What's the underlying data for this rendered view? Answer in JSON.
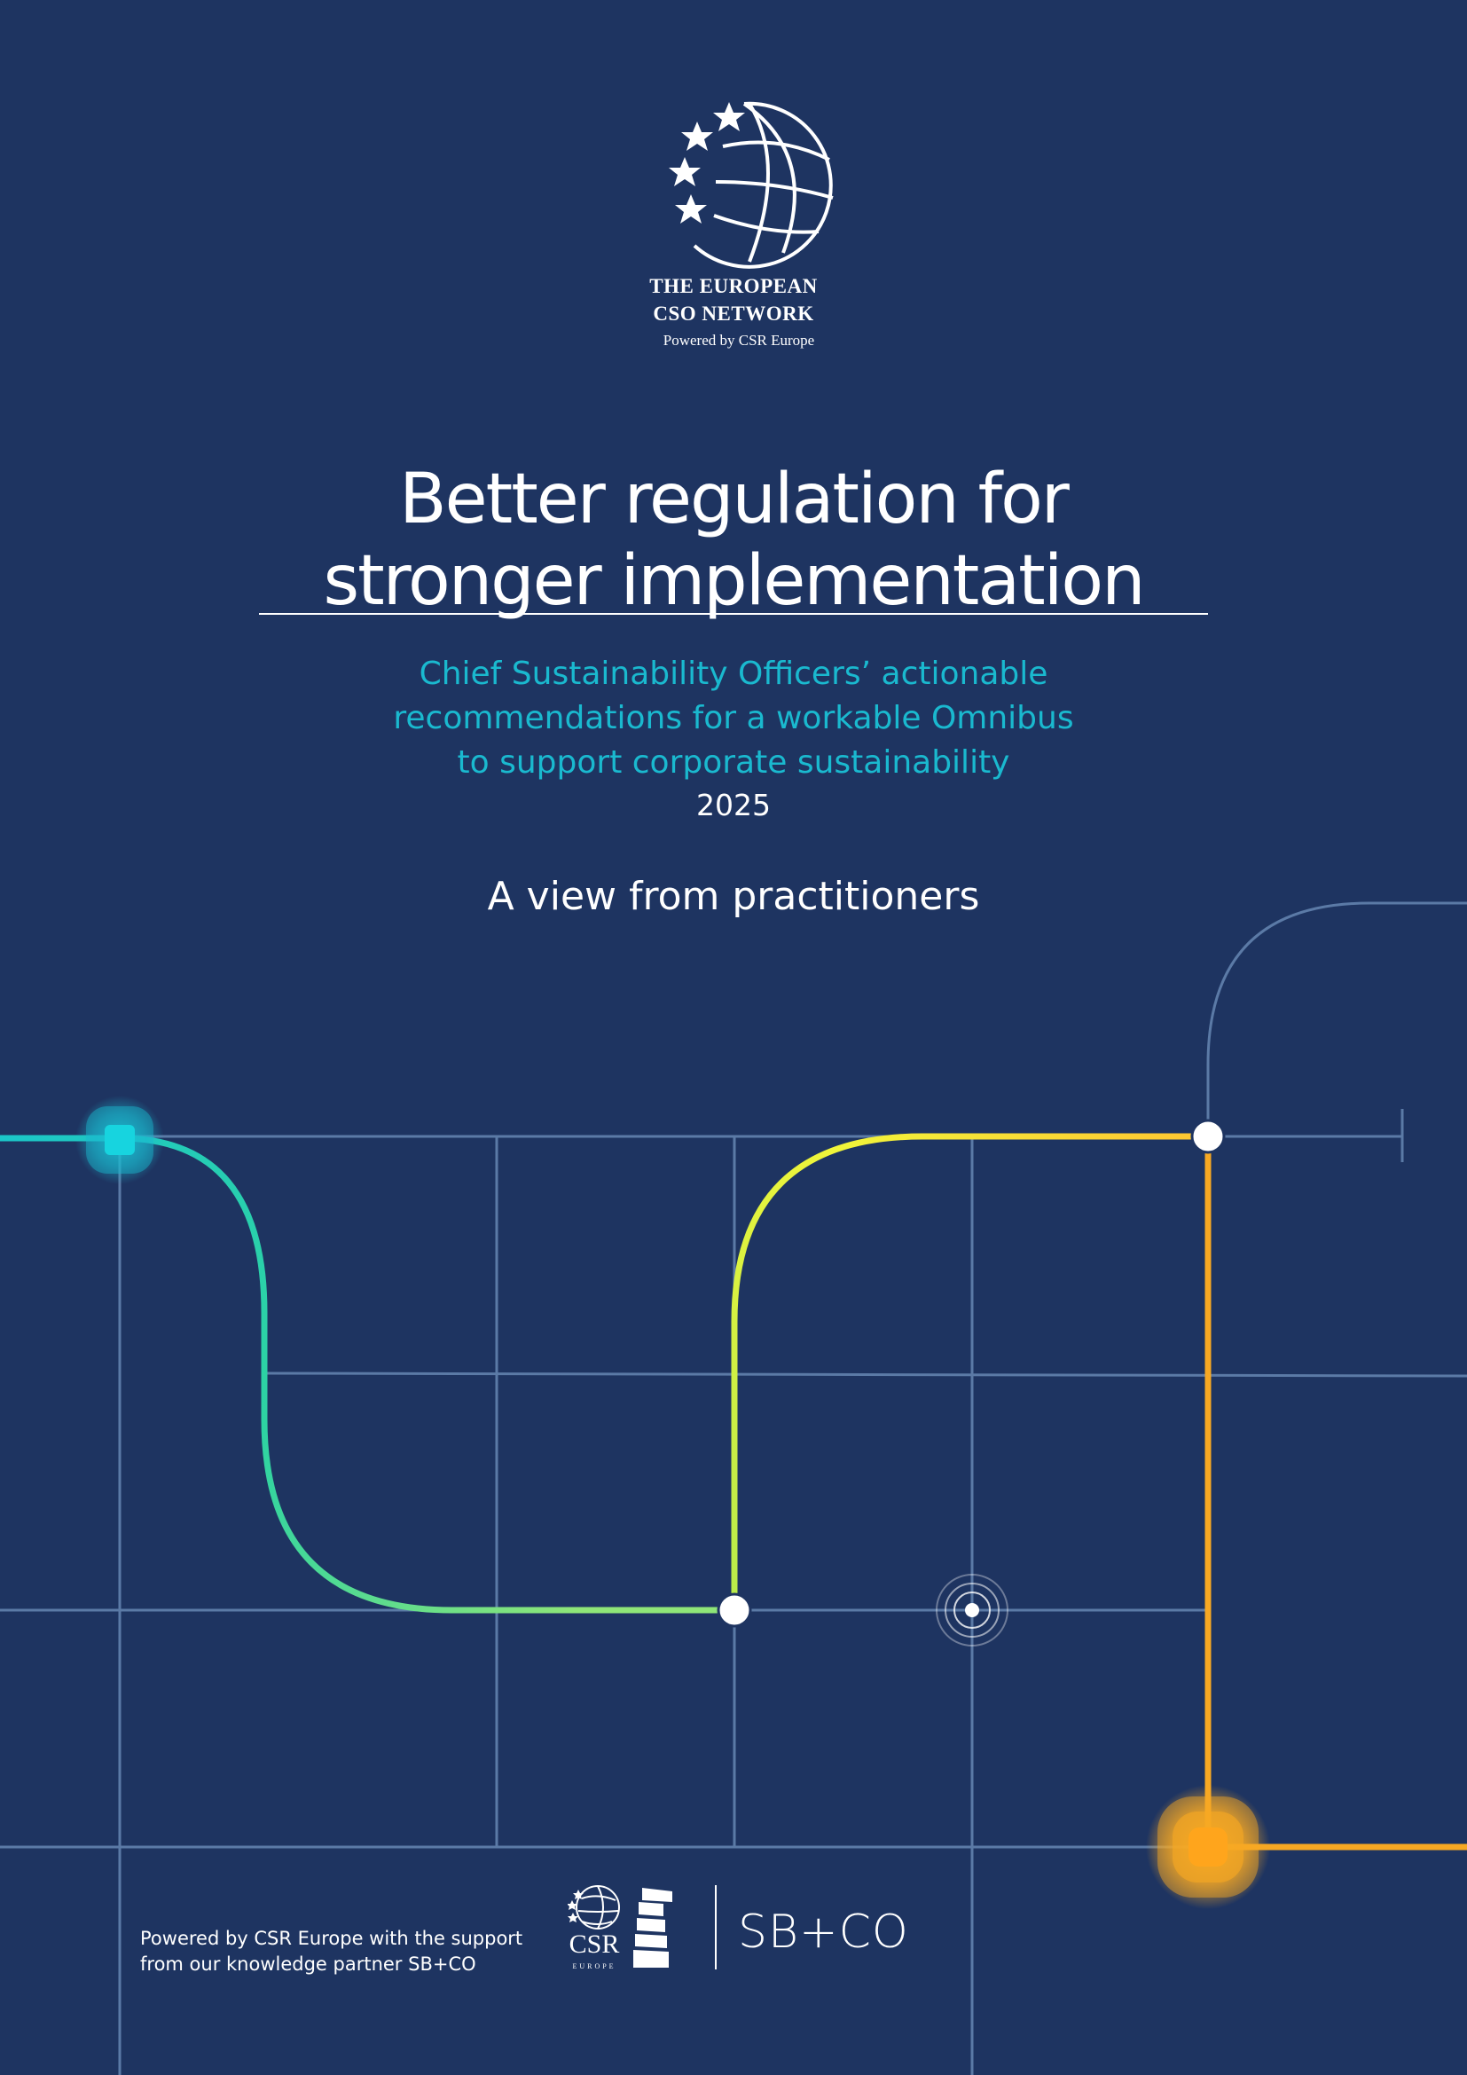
{
  "organization": {
    "name_line1": "THE EUROPEAN",
    "name_line2": "CSO NETWORK",
    "powered_by": "Powered by CSR Europe"
  },
  "title": {
    "line1": "Better regulation for",
    "line2": "stronger implementation"
  },
  "subtitle": {
    "line1": "Chief Sustainability Officers’ actionable",
    "line2": "recommendations for a workable Omnibus",
    "line3": "to support corporate sustainability"
  },
  "year": "2025",
  "tagline": "A view from practitioners",
  "footer": {
    "line1": "Powered by CSR Europe with the support",
    "line2": "from our knowledge partner SB+CO",
    "csr_logo_text": "CSR",
    "csr_logo_subtext": "EUROPE",
    "partner_logo_text": "SB+CO"
  },
  "colors": {
    "background": "#1e3461",
    "grid_line": "#5b7aa6",
    "accent_cyan": "#1ab9cf",
    "accent_green": "#2fd3a8",
    "accent_lime": "#d6f53a",
    "accent_yellow": "#ffe94a",
    "accent_orange": "#f7a823"
  }
}
